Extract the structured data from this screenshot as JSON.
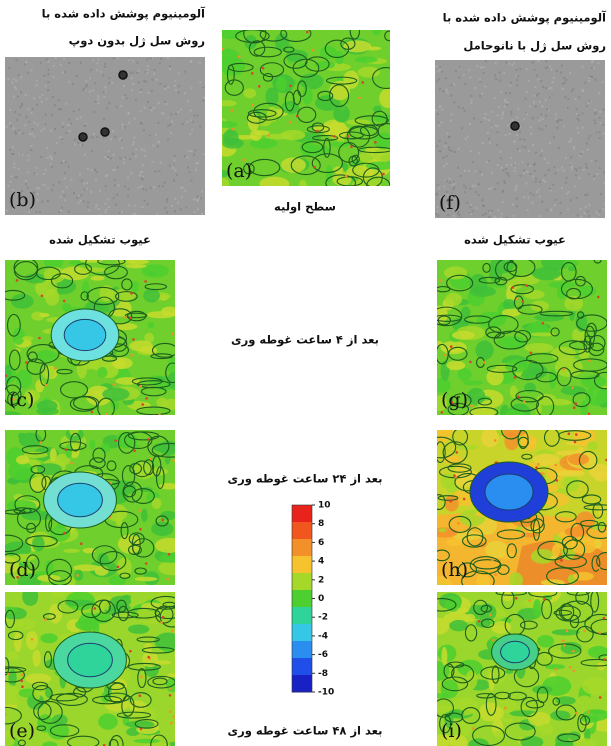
{
  "header_left": {
    "line1": "آلومینیوم پوشش داده شده با",
    "line2": "روش سل ژل بدون دوپ"
  },
  "header_right": {
    "line1": "آلومینیوم پوشش داده شده با",
    "line2": "روش سل ژل با نانوحامل"
  },
  "panels": [
    {
      "label": "(a)"
    },
    {
      "label": "(b)"
    },
    {
      "label": "(f)"
    },
    {
      "label": "(c)"
    },
    {
      "label": "(g)"
    },
    {
      "label": "(d)"
    },
    {
      "label": "(h)"
    },
    {
      "label": "(e)"
    },
    {
      "label": "(i)"
    }
  ],
  "captions": {
    "initial": "سطح اولیه",
    "defects_left": "عیوب تشکیل شده",
    "defects_right": "عیوب تشکیل شده",
    "after_4h": "بعد از ۴ ساعت غوطه وری",
    "after_24h": "بعد از ۲۴ ساعت غوطه وری",
    "after_48h": "بعد از ۴۸ ساعت غوطه وری"
  },
  "colorbar": {
    "ticks": [
      10,
      8,
      6,
      4,
      2,
      0,
      -2,
      -4,
      -6,
      -8,
      -10
    ],
    "colors": [
      "#e8231c",
      "#f0561e",
      "#f3902a",
      "#f6c22e",
      "#a6d829",
      "#4ccf2f",
      "#2ed49a",
      "#36c7e6",
      "#2a8ef0",
      "#1f4fe8",
      "#1822c4"
    ]
  }
}
